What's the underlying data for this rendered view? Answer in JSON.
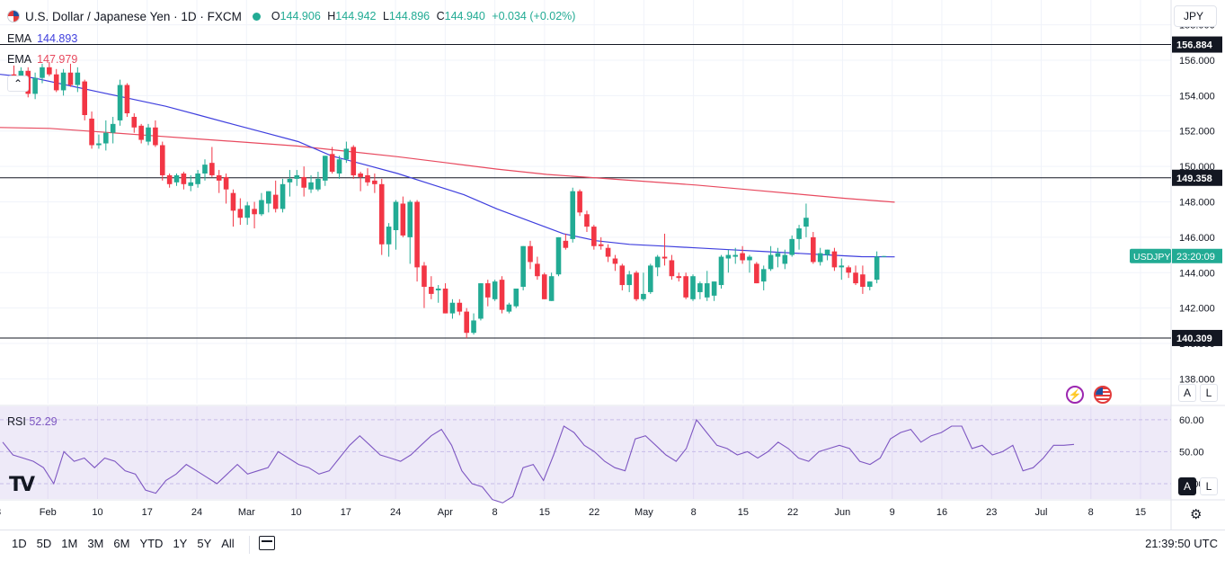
{
  "header": {
    "title": "U.S. Dollar / Japanese Yen · 1D · FXCM",
    "ohlc": [
      {
        "label": "O",
        "value": "144.906"
      },
      {
        "label": "H",
        "value": "144.942"
      },
      {
        "label": "L",
        "value": "144.896"
      },
      {
        "label": "C",
        "value": "144.940"
      }
    ],
    "change": "+0.034 (+0.02%)"
  },
  "indicators": [
    {
      "name": "EMA",
      "value": "144.893",
      "color": "#3f3fde"
    },
    {
      "name": "EMA",
      "value": "147.979",
      "color": "#e84a5f"
    }
  ],
  "currency_button": "JPY",
  "collapse_glyph": "⌃",
  "price_axis": {
    "ticks": [
      "158.000",
      "156.000",
      "154.000",
      "152.000",
      "150.000",
      "148.000",
      "146.000",
      "144.000",
      "142.000",
      "140.000",
      "138.000"
    ],
    "hlines": [
      "156.884",
      "149.358",
      "140.309"
    ],
    "symbol_tag": "USDJPY",
    "countdown": "23:20:09"
  },
  "rsi": {
    "name": "RSI",
    "value": "52.29",
    "ticks": [
      "60.00",
      "50.00",
      "40.00"
    ],
    "color": "#7e57c2"
  },
  "time_axis": [
    "8",
    "Feb",
    "10",
    "17",
    "24",
    "Mar",
    "10",
    "17",
    "24",
    "Apr",
    "8",
    "15",
    "22",
    "May",
    "8",
    "15",
    "22",
    "Jun",
    "9",
    "16",
    "23",
    "Jul",
    "8",
    "15"
  ],
  "scale_buttons": {
    "auto": "A",
    "log": "L"
  },
  "logo": "TV",
  "icons": {
    "bolt": "lightning-icon",
    "flag": "us-flag-icon",
    "gear": "settings-gear-icon",
    "calendar": "calendar-range-icon",
    "tv": "tradingview-logo-icon"
  },
  "bottom": {
    "ranges": [
      "1D",
      "5D",
      "1M",
      "3M",
      "6M",
      "YTD",
      "1Y",
      "5Y",
      "All"
    ],
    "clock": "21:39:50 UTC"
  },
  "chart_data": {
    "type": "candlestick",
    "symbol": "USDJPY",
    "timeframe": "1D",
    "ylim": [
      136.6,
      159.4
    ],
    "rsi_ylim": [
      35.2,
      64.2
    ],
    "candles": [
      {
        "date": "Jan-26",
        "o": 155.2,
        "h": 155.7,
        "l": 154.6,
        "c": 155.0
      },
      {
        "date": "Jan-29",
        "o": 155.0,
        "h": 155.6,
        "l": 154.4,
        "c": 155.4
      },
      {
        "date": "Jan-30",
        "o": 155.4,
        "h": 155.6,
        "l": 153.9,
        "c": 154.1
      },
      {
        "date": "Jan-31",
        "o": 154.1,
        "h": 155.3,
        "l": 153.8,
        "c": 155.0
      },
      {
        "date": "Feb-01",
        "o": 155.0,
        "h": 155.8,
        "l": 154.7,
        "c": 155.6
      },
      {
        "date": "Feb-02",
        "o": 155.6,
        "h": 155.9,
        "l": 155.1,
        "c": 155.2
      },
      {
        "date": "Feb-05",
        "o": 155.2,
        "h": 155.5,
        "l": 154.2,
        "c": 154.3
      },
      {
        "date": "Feb-06",
        "o": 154.3,
        "h": 155.5,
        "l": 154.0,
        "c": 155.3
      },
      {
        "date": "Feb-07",
        "o": 155.3,
        "h": 155.8,
        "l": 154.5,
        "c": 154.6
      },
      {
        "date": "Feb-08",
        "o": 154.6,
        "h": 155.6,
        "l": 154.2,
        "c": 155.3
      },
      {
        "date": "Feb-09",
        "o": 154.8,
        "h": 154.9,
        "l": 152.6,
        "c": 152.9
      },
      {
        "date": "Feb-12",
        "o": 152.7,
        "h": 153.1,
        "l": 151.0,
        "c": 151.2
      },
      {
        "date": "Feb-13",
        "o": 151.2,
        "h": 151.8,
        "l": 151.0,
        "c": 151.3
      },
      {
        "date": "Feb-14",
        "o": 151.3,
        "h": 152.6,
        "l": 150.9,
        "c": 151.9
      },
      {
        "date": "Feb-15",
        "o": 151.9,
        "h": 152.8,
        "l": 151.3,
        "c": 152.4
      },
      {
        "date": "Feb-16",
        "o": 152.6,
        "h": 154.9,
        "l": 152.3,
        "c": 154.6
      },
      {
        "date": "Feb-19",
        "o": 154.6,
        "h": 154.7,
        "l": 152.8,
        "c": 153.0
      },
      {
        "date": "Feb-20",
        "o": 152.8,
        "h": 153.0,
        "l": 151.9,
        "c": 152.2
      },
      {
        "date": "Feb-21",
        "o": 152.3,
        "h": 152.4,
        "l": 151.3,
        "c": 151.5
      },
      {
        "date": "Feb-22",
        "o": 151.4,
        "h": 152.4,
        "l": 151.2,
        "c": 152.2
      },
      {
        "date": "Feb-23",
        "o": 152.2,
        "h": 152.6,
        "l": 151.1,
        "c": 151.2
      },
      {
        "date": "Feb-26",
        "o": 151.2,
        "h": 151.4,
        "l": 149.2,
        "c": 149.5
      },
      {
        "date": "Feb-27",
        "o": 149.5,
        "h": 149.6,
        "l": 148.8,
        "c": 149.0
      },
      {
        "date": "Feb-28",
        "o": 149.1,
        "h": 149.6,
        "l": 148.9,
        "c": 149.5
      },
      {
        "date": "Feb-29",
        "o": 149.6,
        "h": 149.7,
        "l": 148.7,
        "c": 149.0
      },
      {
        "date": "Mar-01",
        "o": 148.9,
        "h": 149.5,
        "l": 148.6,
        "c": 149.1
      },
      {
        "date": "Mar-04",
        "o": 149.0,
        "h": 149.8,
        "l": 148.8,
        "c": 149.6
      },
      {
        "date": "Mar-05",
        "o": 149.6,
        "h": 150.4,
        "l": 149.2,
        "c": 150.1
      },
      {
        "date": "Mar-06",
        "o": 150.2,
        "h": 151.1,
        "l": 149.4,
        "c": 149.5
      },
      {
        "date": "Mar-07",
        "o": 149.5,
        "h": 149.8,
        "l": 148.5,
        "c": 149.2
      },
      {
        "date": "Mar-08",
        "o": 149.4,
        "h": 149.6,
        "l": 147.9,
        "c": 148.7
      },
      {
        "date": "Mar-11",
        "o": 148.5,
        "h": 148.7,
        "l": 146.6,
        "c": 147.5
      },
      {
        "date": "Mar-12",
        "o": 147.6,
        "h": 148.2,
        "l": 146.7,
        "c": 147.1
      },
      {
        "date": "Mar-13",
        "o": 147.1,
        "h": 148.0,
        "l": 146.7,
        "c": 147.8
      },
      {
        "date": "Mar-14",
        "o": 147.6,
        "h": 148.0,
        "l": 146.5,
        "c": 147.3
      },
      {
        "date": "Mar-15",
        "o": 147.3,
        "h": 148.5,
        "l": 147.2,
        "c": 148.1
      },
      {
        "date": "Mar-18",
        "o": 147.9,
        "h": 148.6,
        "l": 147.4,
        "c": 148.6
      },
      {
        "date": "Mar-19",
        "o": 148.4,
        "h": 149.2,
        "l": 147.4,
        "c": 147.6
      },
      {
        "date": "Mar-20",
        "o": 147.6,
        "h": 149.3,
        "l": 147.4,
        "c": 149.0
      },
      {
        "date": "Mar-21",
        "o": 149.1,
        "h": 149.8,
        "l": 148.3,
        "c": 149.3
      },
      {
        "date": "Mar-22",
        "o": 149.3,
        "h": 149.8,
        "l": 148.9,
        "c": 149.5
      },
      {
        "date": "Mar-25",
        "o": 149.4,
        "h": 150.0,
        "l": 148.3,
        "c": 148.8
      },
      {
        "date": "Mar-26",
        "o": 148.7,
        "h": 149.5,
        "l": 148.5,
        "c": 149.1
      },
      {
        "date": "Mar-27",
        "o": 148.7,
        "h": 149.7,
        "l": 148.6,
        "c": 149.3
      },
      {
        "date": "Mar-28",
        "o": 149.2,
        "h": 150.6,
        "l": 148.9,
        "c": 150.6
      },
      {
        "date": "Mar-29",
        "o": 150.7,
        "h": 151.1,
        "l": 149.6,
        "c": 149.7
      },
      {
        "date": "Apr-01",
        "o": 149.6,
        "h": 150.6,
        "l": 149.3,
        "c": 150.4
      },
      {
        "date": "Apr-02",
        "o": 150.4,
        "h": 151.4,
        "l": 150.2,
        "c": 151.0
      },
      {
        "date": "Apr-03",
        "o": 151.1,
        "h": 151.2,
        "l": 149.3,
        "c": 149.5
      },
      {
        "date": "Apr-04",
        "o": 149.6,
        "h": 149.7,
        "l": 148.6,
        "c": 149.4
      },
      {
        "date": "Apr-05",
        "o": 149.5,
        "h": 149.9,
        "l": 148.9,
        "c": 149.1
      },
      {
        "date": "Apr-08",
        "o": 149.2,
        "h": 149.6,
        "l": 148.5,
        "c": 149.0
      },
      {
        "date": "Apr-09",
        "o": 149.0,
        "h": 149.3,
        "l": 145.0,
        "c": 145.6
      },
      {
        "date": "Apr-10",
        "o": 145.6,
        "h": 146.8,
        "l": 144.9,
        "c": 146.6
      },
      {
        "date": "Apr-11",
        "o": 146.4,
        "h": 148.1,
        "l": 145.3,
        "c": 148.0
      },
      {
        "date": "Apr-12",
        "o": 147.9,
        "h": 148.3,
        "l": 146.0,
        "c": 146.1
      },
      {
        "date": "Apr-15",
        "o": 146.0,
        "h": 148.1,
        "l": 144.5,
        "c": 148.0
      },
      {
        "date": "Apr-16",
        "o": 148.0,
        "h": 148.1,
        "l": 143.5,
        "c": 144.3
      },
      {
        "date": "Apr-17",
        "o": 144.4,
        "h": 144.6,
        "l": 142.0,
        "c": 143.2
      },
      {
        "date": "Apr-18",
        "o": 143.2,
        "h": 143.8,
        "l": 142.5,
        "c": 142.8
      },
      {
        "date": "Apr-19",
        "o": 143.0,
        "h": 143.3,
        "l": 142.3,
        "c": 143.1
      },
      {
        "date": "Apr-22",
        "o": 143.1,
        "h": 143.4,
        "l": 141.7,
        "c": 141.7
      },
      {
        "date": "Apr-23",
        "o": 141.7,
        "h": 142.5,
        "l": 141.4,
        "c": 142.3
      },
      {
        "date": "Apr-24",
        "o": 142.3,
        "h": 142.5,
        "l": 141.6,
        "c": 141.8
      },
      {
        "date": "Apr-25",
        "o": 141.8,
        "h": 142.0,
        "l": 140.3,
        "c": 140.6
      },
      {
        "date": "Apr-26",
        "o": 140.6,
        "h": 141.7,
        "l": 140.5,
        "c": 141.3
      },
      {
        "date": "Apr-29",
        "o": 141.4,
        "h": 143.4,
        "l": 141.3,
        "c": 143.4
      },
      {
        "date": "Apr-30",
        "o": 143.4,
        "h": 143.6,
        "l": 142.1,
        "c": 142.6
      },
      {
        "date": "May-01",
        "o": 142.5,
        "h": 143.6,
        "l": 142.4,
        "c": 143.5
      },
      {
        "date": "May-02",
        "o": 143.6,
        "h": 143.8,
        "l": 141.7,
        "c": 141.9
      },
      {
        "date": "May-03",
        "o": 141.8,
        "h": 142.3,
        "l": 141.7,
        "c": 142.2
      },
      {
        "date": "May-06",
        "o": 142.1,
        "h": 143.1,
        "l": 142.0,
        "c": 143.1
      },
      {
        "date": "May-07",
        "o": 143.2,
        "h": 145.5,
        "l": 143.0,
        "c": 145.5
      },
      {
        "date": "May-08",
        "o": 145.5,
        "h": 145.8,
        "l": 144.2,
        "c": 144.6
      },
      {
        "date": "May-09",
        "o": 144.5,
        "h": 144.9,
        "l": 143.6,
        "c": 143.8
      },
      {
        "date": "May-10",
        "o": 143.9,
        "h": 144.0,
        "l": 142.5,
        "c": 142.5
      },
      {
        "date": "May-13",
        "o": 142.4,
        "h": 144.0,
        "l": 142.4,
        "c": 143.8
      },
      {
        "date": "May-14",
        "o": 143.9,
        "h": 146.0,
        "l": 143.8,
        "c": 146.0
      },
      {
        "date": "May-15",
        "o": 145.8,
        "h": 146.2,
        "l": 145.3,
        "c": 145.4
      },
      {
        "date": "May-16",
        "o": 145.9,
        "h": 148.8,
        "l": 145.7,
        "c": 148.6
      },
      {
        "date": "May-17",
        "o": 148.6,
        "h": 148.7,
        "l": 147.2,
        "c": 147.4
      },
      {
        "date": "May-20",
        "o": 147.3,
        "h": 147.5,
        "l": 146.3,
        "c": 146.6
      },
      {
        "date": "May-21",
        "o": 146.6,
        "h": 146.7,
        "l": 145.3,
        "c": 145.5
      },
      {
        "date": "May-22",
        "o": 145.6,
        "h": 146.0,
        "l": 145.3,
        "c": 145.5
      },
      {
        "date": "May-23",
        "o": 145.4,
        "h": 145.6,
        "l": 144.6,
        "c": 144.9
      },
      {
        "date": "May-24",
        "o": 144.8,
        "h": 145.0,
        "l": 144.1,
        "c": 144.5
      },
      {
        "date": "May-27",
        "o": 144.4,
        "h": 144.5,
        "l": 143.0,
        "c": 143.3
      },
      {
        "date": "May-28",
        "o": 143.3,
        "h": 144.1,
        "l": 142.9,
        "c": 143.9
      },
      {
        "date": "May-29",
        "o": 144.0,
        "h": 144.1,
        "l": 142.4,
        "c": 142.5
      },
      {
        "date": "May-30",
        "o": 142.5,
        "h": 144.0,
        "l": 142.4,
        "c": 142.8
      },
      {
        "date": "May-31",
        "o": 142.9,
        "h": 144.5,
        "l": 142.8,
        "c": 144.4
      },
      {
        "date": "Jun-03",
        "o": 144.3,
        "h": 145.0,
        "l": 143.8,
        "c": 144.9
      },
      {
        "date": "Jun-04",
        "o": 144.9,
        "h": 146.2,
        "l": 144.4,
        "c": 144.8
      },
      {
        "date": "Jun-05",
        "o": 144.7,
        "h": 145.0,
        "l": 143.6,
        "c": 143.8
      },
      {
        "date": "Jun-06",
        "o": 143.8,
        "h": 144.0,
        "l": 143.5,
        "c": 143.7
      },
      {
        "date": "Jun-07",
        "o": 143.8,
        "h": 144.0,
        "l": 142.5,
        "c": 142.6
      },
      {
        "date": "Jun-10",
        "o": 142.5,
        "h": 143.9,
        "l": 142.4,
        "c": 143.8
      },
      {
        "date": "Jun-11",
        "o": 142.9,
        "h": 143.5,
        "l": 142.5,
        "c": 143.4
      },
      {
        "date": "Jun-12",
        "o": 142.6,
        "h": 144.1,
        "l": 142.4,
        "c": 143.4
      },
      {
        "date": "Jun-13",
        "o": 142.7,
        "h": 143.5,
        "l": 142.4,
        "c": 143.5
      },
      {
        "date": "Jun-14",
        "o": 143.3,
        "h": 145.0,
        "l": 143.1,
        "c": 144.9
      },
      {
        "date": "Jun-17",
        "o": 144.8,
        "h": 145.3,
        "l": 144.0,
        "c": 145.0
      },
      {
        "date": "Jun-18",
        "o": 144.9,
        "h": 145.4,
        "l": 144.5,
        "c": 145.0
      },
      {
        "date": "Jun-19",
        "o": 145.1,
        "h": 145.5,
        "l": 144.5,
        "c": 144.7
      },
      {
        "date": "Jun-20",
        "o": 144.7,
        "h": 145.0,
        "l": 144.0,
        "c": 144.9
      },
      {
        "date": "Jun-21",
        "o": 144.5,
        "h": 144.6,
        "l": 143.4,
        "c": 143.4
      },
      {
        "date": "Jun-24",
        "o": 143.5,
        "h": 144.4,
        "l": 143.0,
        "c": 144.2
      },
      {
        "date": "Jun-25",
        "o": 144.2,
        "h": 145.5,
        "l": 144.1,
        "c": 145.0
      },
      {
        "date": "Jun-26",
        "o": 144.9,
        "h": 145.4,
        "l": 144.3,
        "c": 145.1
      },
      {
        "date": "Jun-27",
        "o": 144.5,
        "h": 145.3,
        "l": 144.2,
        "c": 145.0
      },
      {
        "date": "Jun-28",
        "o": 145.0,
        "h": 146.1,
        "l": 144.9,
        "c": 145.9
      },
      {
        "date": "Jul-01",
        "o": 145.9,
        "h": 146.7,
        "l": 145.3,
        "c": 146.5
      },
      {
        "date": "Jul-02",
        "o": 146.6,
        "h": 147.9,
        "l": 146.0,
        "c": 147.1
      },
      {
        "date": "Jul-03",
        "o": 146.0,
        "h": 146.3,
        "l": 144.5,
        "c": 144.6
      },
      {
        "date": "Jul-04",
        "o": 144.6,
        "h": 145.4,
        "l": 144.4,
        "c": 145.1
      },
      {
        "date": "Jul-05",
        "o": 145.0,
        "h": 145.3,
        "l": 144.7,
        "c": 145.3
      },
      {
        "date": "Jul-08",
        "o": 145.2,
        "h": 145.4,
        "l": 144.1,
        "c": 144.3
      },
      {
        "date": "Jul-09",
        "o": 144.3,
        "h": 144.8,
        "l": 143.6,
        "c": 144.4
      },
      {
        "date": "Jul-10",
        "o": 144.3,
        "h": 144.4,
        "l": 143.7,
        "c": 144.0
      },
      {
        "date": "Jul-11",
        "o": 144.0,
        "h": 144.4,
        "l": 143.3,
        "c": 143.4
      },
      {
        "date": "Jul-12",
        "o": 143.9,
        "h": 144.4,
        "l": 142.8,
        "c": 143.2
      },
      {
        "date": "Jul-15",
        "o": 143.2,
        "h": 143.5,
        "l": 143.0,
        "c": 143.5
      },
      {
        "date": "Jul-16",
        "o": 143.6,
        "h": 145.2,
        "l": 143.4,
        "c": 144.906
      },
      {
        "date": "Jul-17",
        "o": 144.906,
        "h": 144.942,
        "l": 144.896,
        "c": 144.94
      }
    ],
    "ema_fast": [
      155.2,
      155.0,
      154.6,
      154.2,
      153.8,
      153.4,
      152.9,
      152.4,
      151.9,
      151.4,
      150.6,
      150.1,
      149.6,
      149.0,
      148.4,
      147.6,
      146.9,
      146.2,
      145.8,
      145.6,
      145.5,
      145.4,
      145.3,
      145.2,
      145.1,
      145.0,
      144.9,
      144.893
    ],
    "ema_slow": [
      152.2,
      152.15,
      151.95,
      151.75,
      151.55,
      151.35,
      151.15,
      150.85,
      150.55,
      150.2,
      149.85,
      149.55,
      149.35,
      149.15,
      148.95,
      148.7,
      148.45,
      148.2,
      147.979
    ],
    "horizontal_lines": [
      156.884,
      149.358,
      140.309
    ],
    "rsi_values": [
      53,
      49,
      48,
      47,
      45,
      40,
      50,
      47,
      48,
      45,
      48,
      47,
      44,
      43,
      38,
      37,
      41,
      43,
      46,
      44,
      42,
      40,
      43,
      46,
      43,
      44,
      45,
      50,
      48,
      46,
      45,
      43,
      44,
      48,
      52,
      55,
      52,
      49,
      48,
      47,
      49,
      52,
      55,
      57,
      52,
      44,
      40,
      39,
      35,
      34,
      36,
      45,
      46,
      41,
      49,
      58,
      56,
      52,
      50,
      47,
      45,
      44,
      54,
      55,
      52,
      49,
      47,
      51,
      60,
      56,
      52,
      51,
      49,
      50,
      48,
      50,
      53,
      51,
      48,
      47,
      50,
      51,
      52,
      51,
      47,
      46,
      48,
      54,
      56,
      57,
      53,
      55,
      56,
      58,
      58,
      51,
      52,
      49,
      50,
      52,
      44,
      45,
      48,
      52,
      52,
      52.29
    ]
  }
}
